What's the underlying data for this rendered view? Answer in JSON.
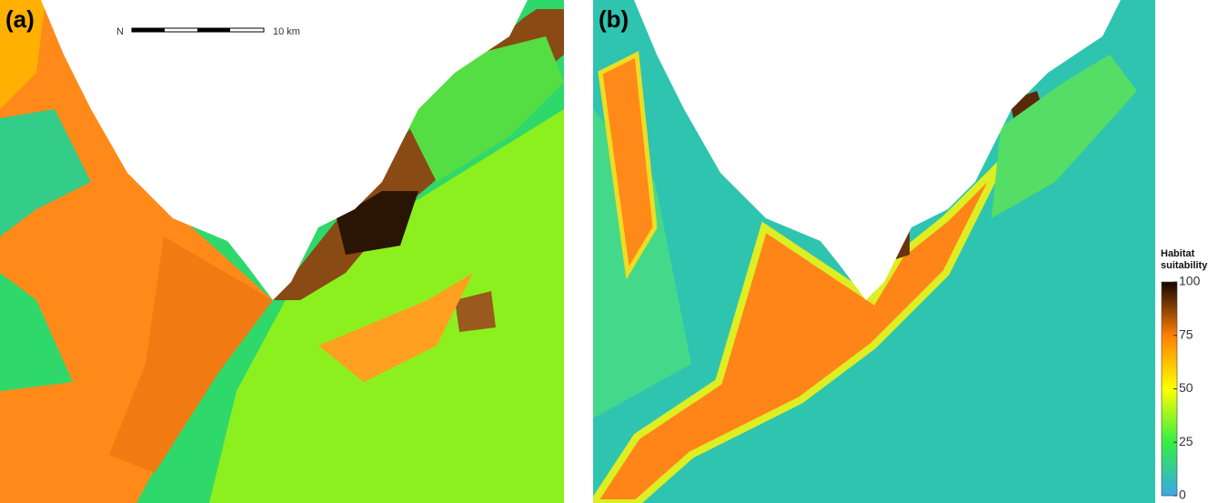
{
  "panels": [
    {
      "label": "(a)"
    },
    {
      "label": "(b)"
    }
  ],
  "scale_bar": {
    "north": "N",
    "label": "10 km"
  },
  "legend": {
    "title_lines": [
      "Habitat",
      "suitability"
    ],
    "range": [
      0,
      100
    ],
    "ticks": [
      0,
      25,
      50,
      75,
      100
    ],
    "colors": [
      "#3aa8e8",
      "#33ee44",
      "#ffff00",
      "#ff8000",
      "#140400"
    ]
  }
}
